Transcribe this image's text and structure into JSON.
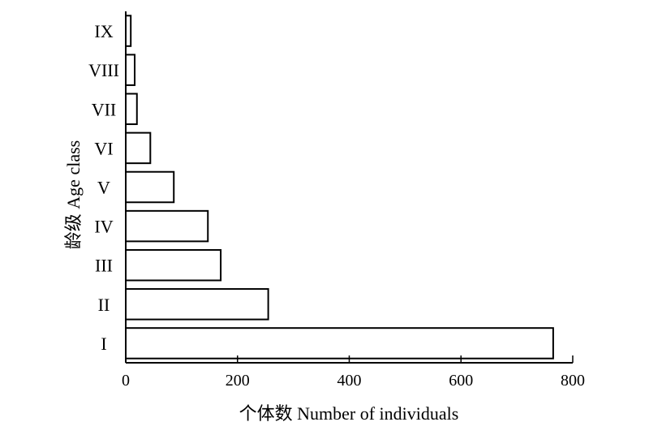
{
  "chart_data": {
    "type": "bar",
    "orientation": "horizontal",
    "categories": [
      "I",
      "II",
      "III",
      "IV",
      "V",
      "VI",
      "VII",
      "VIII",
      "IX"
    ],
    "values": [
      765,
      255,
      170,
      147,
      86,
      44,
      20,
      16,
      9
    ],
    "xlabel": "个体数 Number of individuals",
    "ylabel": "龄级 Age class",
    "xlim": [
      0,
      800
    ],
    "xticks": [
      0,
      200,
      400,
      600,
      800
    ],
    "grid": false,
    "legend": "none",
    "colors": {
      "bar_fill": "#ffffff",
      "bar_stroke": "#000000"
    }
  }
}
